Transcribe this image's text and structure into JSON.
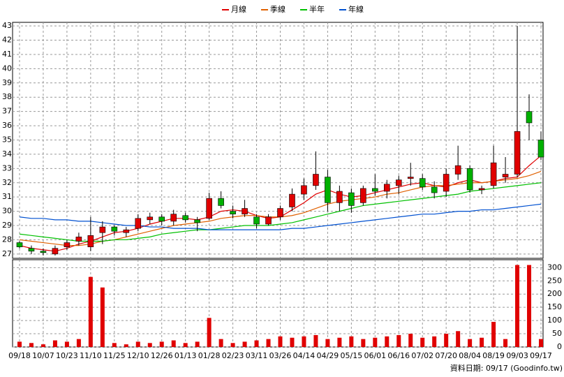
{
  "chart_data": {
    "type": "candlestick",
    "categories": [
      "09/18",
      null,
      "10/07",
      null,
      "10/23",
      null,
      "11/10",
      null,
      "11/25",
      null,
      "12/10",
      null,
      "12/26",
      null,
      "01/13",
      null,
      "01/28",
      null,
      "02/23",
      null,
      "03/11",
      null,
      "03/26",
      null,
      "04/14",
      null,
      "04/29",
      null,
      "05/15",
      null,
      "06/01",
      null,
      "06/16",
      null,
      "07/02",
      null,
      "07/20",
      null,
      "08/04",
      null,
      "08/19",
      null,
      "09/03",
      null,
      "09/17"
    ],
    "open": [
      27.8,
      27.4,
      27.2,
      27.0,
      27.5,
      27.9,
      27.5,
      28.5,
      28.9,
      28.5,
      28.8,
      29.4,
      29.6,
      29.3,
      29.7,
      29.4,
      29.5,
      30.9,
      30.0,
      29.8,
      29.6,
      29.1,
      29.6,
      30.3,
      31.2,
      31.8,
      32.4,
      30.6,
      31.3,
      30.6,
      31.6,
      31.4,
      31.8,
      32.3,
      32.3,
      31.7,
      31.4,
      32.6,
      33.0,
      31.5,
      31.8,
      32.4,
      32.6,
      37.0,
      35.0
    ],
    "high": [
      27.9,
      27.6,
      27.4,
      27.6,
      28.0,
      28.5,
      29.6,
      29.3,
      29.0,
      28.9,
      29.8,
      29.9,
      29.8,
      30.1,
      29.9,
      29.6,
      31.3,
      31.4,
      30.4,
      30.8,
      29.8,
      29.8,
      30.4,
      31.6,
      32.3,
      34.2,
      32.9,
      31.8,
      31.6,
      31.8,
      32.6,
      32.2,
      32.5,
      33.4,
      32.6,
      32.1,
      33.0,
      34.6,
      33.2,
      31.8,
      34.6,
      33.8,
      43.0,
      38.2,
      35.6
    ],
    "low": [
      27.4,
      27.0,
      26.9,
      26.9,
      27.3,
      27.6,
      27.2,
      27.7,
      28.3,
      28.2,
      28.6,
      29.1,
      29.0,
      29.0,
      29.2,
      28.6,
      29.4,
      30.2,
      29.5,
      29.6,
      28.8,
      29.0,
      29.4,
      30.0,
      30.8,
      31.5,
      30.0,
      30.0,
      29.9,
      30.4,
      31.1,
      30.9,
      31.2,
      31.8,
      31.5,
      30.9,
      31.0,
      32.2,
      31.3,
      31.2,
      31.6,
      32.0,
      32.4,
      35.0,
      33.6
    ],
    "close": [
      27.5,
      27.2,
      27.1,
      27.4,
      27.8,
      28.2,
      28.3,
      28.9,
      28.6,
      28.7,
      29.5,
      29.6,
      29.3,
      29.8,
      29.4,
      29.2,
      30.9,
      30.4,
      29.8,
      30.2,
      29.1,
      29.6,
      30.2,
      31.2,
      31.8,
      32.6,
      30.6,
      31.4,
      30.4,
      31.6,
      31.4,
      31.9,
      32.2,
      32.4,
      31.7,
      31.3,
      32.6,
      33.2,
      31.5,
      31.6,
      33.4,
      32.6,
      35.6,
      36.2,
      33.8
    ],
    "up_color": "#e00000",
    "down_color": "#00b000",
    "ylim": [
      26.7,
      43.25
    ],
    "yticks": [
      27,
      28,
      29,
      30,
      31,
      32,
      33,
      34,
      35,
      36,
      37,
      38,
      39,
      40,
      41,
      42,
      43
    ],
    "grid": true,
    "series": [
      {
        "name": "月線",
        "color": "#e00000",
        "values": [
          27.6,
          27.4,
          27.3,
          27.2,
          27.4,
          27.7,
          27.9,
          28.2,
          28.5,
          28.6,
          28.8,
          29.1,
          29.3,
          29.5,
          29.5,
          29.4,
          29.6,
          30.0,
          30.1,
          30.0,
          29.7,
          29.5,
          29.6,
          30.1,
          30.6,
          31.2,
          31.5,
          31.2,
          31.0,
          31.1,
          31.3,
          31.5,
          31.7,
          31.9,
          32.0,
          31.8,
          31.7,
          32.0,
          32.2,
          32.0,
          32.1,
          32.3,
          32.4,
          33.2,
          33.9
        ]
      },
      {
        "name": "季線",
        "color": "#e06000",
        "values": [
          28.0,
          27.9,
          27.8,
          27.7,
          27.6,
          27.6,
          27.7,
          27.9,
          28.0,
          28.2,
          28.4,
          28.6,
          28.8,
          29.0,
          29.1,
          29.2,
          29.3,
          29.5,
          29.6,
          29.7,
          29.7,
          29.6,
          29.6,
          29.7,
          29.9,
          30.2,
          30.5,
          30.7,
          30.8,
          30.9,
          31.0,
          31.2,
          31.3,
          31.5,
          31.7,
          31.8,
          31.8,
          31.9,
          32.0,
          32.0,
          32.1,
          32.2,
          32.3,
          32.5,
          32.8
        ]
      },
      {
        "name": "半年",
        "color": "#00c000",
        "values": [
          28.4,
          28.3,
          28.2,
          28.1,
          28.0,
          27.9,
          27.9,
          27.9,
          28.0,
          28.0,
          28.1,
          28.2,
          28.4,
          28.5,
          28.6,
          28.7,
          28.7,
          28.8,
          28.9,
          29.0,
          29.0,
          29.0,
          29.1,
          29.2,
          29.4,
          29.6,
          29.8,
          30.0,
          30.2,
          30.4,
          30.5,
          30.6,
          30.7,
          30.8,
          30.9,
          31.0,
          31.1,
          31.2,
          31.4,
          31.5,
          31.6,
          31.7,
          31.8,
          31.9,
          32.0
        ]
      },
      {
        "name": "年線",
        "color": "#0050d0",
        "values": [
          29.6,
          29.5,
          29.5,
          29.4,
          29.4,
          29.3,
          29.3,
          29.2,
          29.1,
          29.0,
          29.0,
          28.9,
          28.9,
          28.8,
          28.8,
          28.8,
          28.7,
          28.7,
          28.7,
          28.7,
          28.7,
          28.7,
          28.7,
          28.8,
          28.8,
          28.9,
          29.0,
          29.1,
          29.2,
          29.3,
          29.4,
          29.5,
          29.6,
          29.7,
          29.8,
          29.8,
          29.9,
          30.0,
          30.0,
          30.1,
          30.1,
          30.2,
          30.3,
          30.4,
          30.5
        ]
      }
    ],
    "volume": {
      "color": "#e00000",
      "ylim": [
        0,
        330
      ],
      "yticks": [
        0,
        50,
        100,
        150,
        200,
        250,
        300
      ],
      "values": [
        20,
        15,
        10,
        25,
        20,
        30,
        265,
        225,
        15,
        10,
        20,
        15,
        20,
        25,
        15,
        20,
        110,
        30,
        15,
        20,
        25,
        30,
        40,
        35,
        40,
        45,
        30,
        35,
        40,
        30,
        35,
        40,
        45,
        50,
        35,
        40,
        50,
        60,
        30,
        35,
        95,
        30,
        310,
        310,
        30
      ]
    },
    "footer": "資料日期: 09/17 (Goodinfo.tw)"
  }
}
